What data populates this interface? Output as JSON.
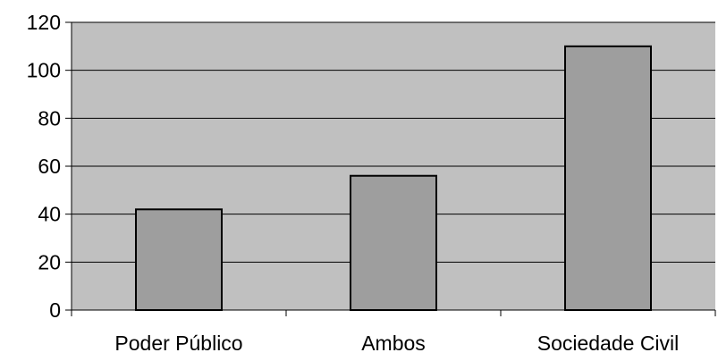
{
  "chart_data": {
    "type": "bar",
    "categories": [
      "Poder Público",
      "Ambos",
      "Sociedade Civil"
    ],
    "values": [
      42,
      56,
      110
    ],
    "ylim": [
      0,
      120
    ],
    "yticks": [
      "0",
      "20",
      "40",
      "60",
      "80",
      "100",
      "120"
    ],
    "grid": true,
    "title": "",
    "xlabel": "",
    "ylabel": "",
    "colors": {
      "plot_background": "#c0c0c0",
      "bar_fill": "#9e9e9e",
      "bar_stroke": "#000000",
      "gridline": "#000000"
    }
  }
}
